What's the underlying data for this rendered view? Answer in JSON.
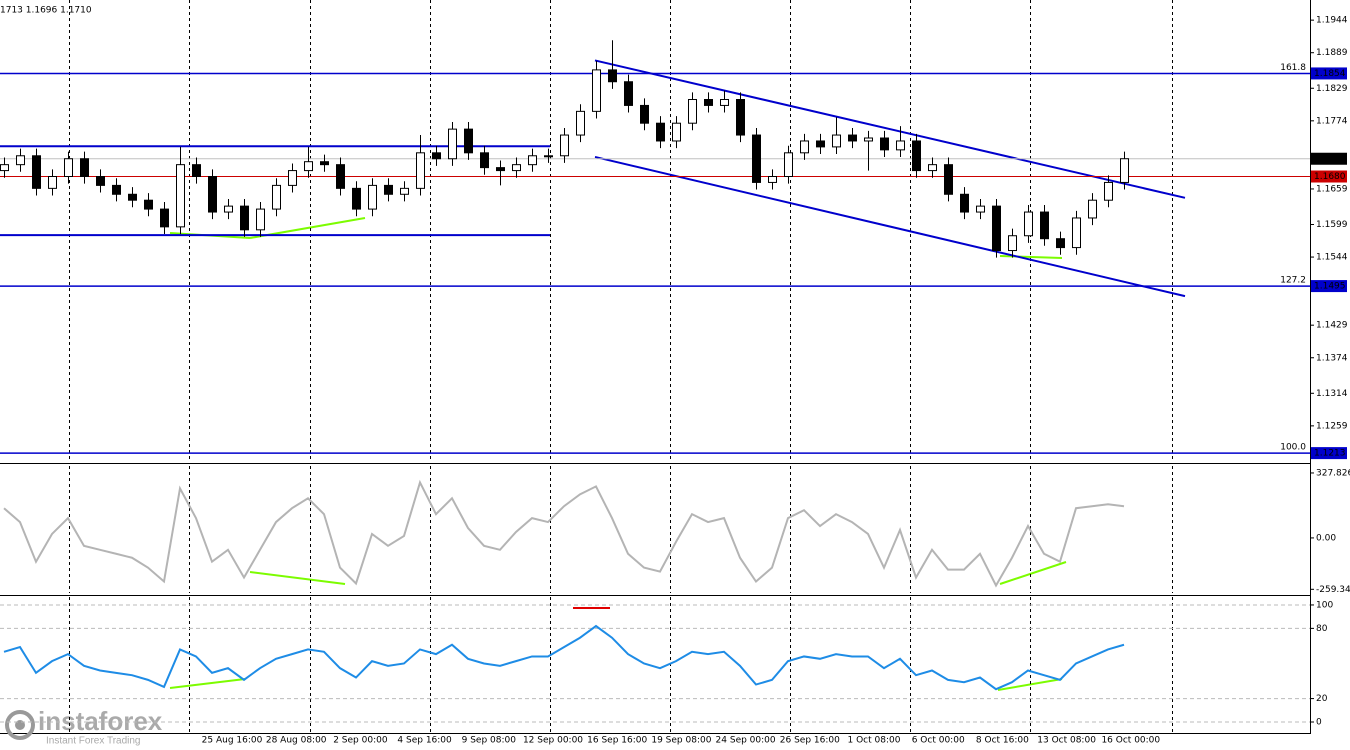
{
  "header": "1713 1.1696 1.1710",
  "watermark": {
    "brand": "instaforex",
    "tagline": "Instant Forex Trading"
  },
  "xlabels": [
    "25 Aug 16:00",
    "28 Aug 08:00",
    "2 Sep 00:00",
    "4 Sep 16:00",
    "9 Sep 08:00",
    "12 Sep 00:00",
    "16 Sep 16:00",
    "19 Sep 08:00",
    "24 Sep 00:00",
    "26 Sep 16:00",
    "1 Oct 08:00",
    "6 Oct 00:00",
    "8 Oct 16:00",
    "13 Oct 08:00",
    "16 Oct 00:00"
  ],
  "chart_data": [
    {
      "type": "candlestick",
      "up_color": "#ffffff",
      "down_color": "#000000",
      "ylim": [
        1.1198,
        1.1978
      ],
      "yticks": [
        1.1944,
        1.1889,
        1.1829,
        1.1774,
        1.1659,
        1.1599,
        1.1544,
        1.1429,
        1.1374,
        1.1314,
        1.1259
      ],
      "candles": [
        [
          1.169,
          1.1712,
          1.1678,
          1.17
        ],
        [
          1.17,
          1.1727,
          1.1688,
          1.1715
        ],
        [
          1.1715,
          1.1727,
          1.1648,
          1.166
        ],
        [
          1.166,
          1.1692,
          1.1648,
          1.168
        ],
        [
          1.168,
          1.1722,
          1.1668,
          1.171
        ],
        [
          1.171,
          1.1722,
          1.1668,
          1.168
        ],
        [
          1.168,
          1.1692,
          1.1653,
          1.1665
        ],
        [
          1.1665,
          1.1677,
          1.1638,
          1.165
        ],
        [
          1.165,
          1.1662,
          1.1628,
          1.164
        ],
        [
          1.164,
          1.1652,
          1.1613,
          1.1625
        ],
        [
          1.1625,
          1.1637,
          1.1583,
          1.1595
        ],
        [
          1.1595,
          1.173,
          1.1583,
          1.17
        ],
        [
          1.17,
          1.1712,
          1.1668,
          1.168
        ],
        [
          1.168,
          1.1692,
          1.1608,
          1.162
        ],
        [
          1.162,
          1.1642,
          1.1608,
          1.163
        ],
        [
          1.163,
          1.1642,
          1.1578,
          1.159
        ],
        [
          1.159,
          1.1637,
          1.1578,
          1.1625
        ],
        [
          1.1625,
          1.1677,
          1.1613,
          1.1665
        ],
        [
          1.1665,
          1.1702,
          1.1653,
          1.169
        ],
        [
          1.169,
          1.173,
          1.1678,
          1.1705
        ],
        [
          1.1705,
          1.1717,
          1.1688,
          1.17
        ],
        [
          1.17,
          1.1712,
          1.1648,
          1.166
        ],
        [
          1.166,
          1.1672,
          1.1613,
          1.1625
        ],
        [
          1.1625,
          1.1677,
          1.1613,
          1.1665
        ],
        [
          1.1665,
          1.1677,
          1.1638,
          1.165
        ],
        [
          1.165,
          1.1672,
          1.1638,
          1.166
        ],
        [
          1.166,
          1.175,
          1.1648,
          1.172
        ],
        [
          1.172,
          1.1732,
          1.1698,
          1.171
        ],
        [
          1.171,
          1.1772,
          1.1698,
          1.176
        ],
        [
          1.176,
          1.1772,
          1.1708,
          1.172
        ],
        [
          1.172,
          1.1732,
          1.1683,
          1.1695
        ],
        [
          1.1695,
          1.1707,
          1.1665,
          1.169
        ],
        [
          1.169,
          1.1712,
          1.1678,
          1.17
        ],
        [
          1.17,
          1.1727,
          1.1688,
          1.1715
        ],
        [
          1.1715,
          1.1727,
          1.1703,
          1.1715
        ],
        [
          1.1715,
          1.1762,
          1.1703,
          1.175
        ],
        [
          1.175,
          1.1802,
          1.1738,
          1.179
        ],
        [
          1.179,
          1.1875,
          1.1778,
          1.186
        ],
        [
          1.186,
          1.191,
          1.1828,
          1.184
        ],
        [
          1.184,
          1.1852,
          1.1788,
          1.18
        ],
        [
          1.18,
          1.1812,
          1.1758,
          1.177
        ],
        [
          1.177,
          1.1782,
          1.1728,
          1.174
        ],
        [
          1.174,
          1.1782,
          1.1728,
          1.177
        ],
        [
          1.177,
          1.1822,
          1.1758,
          1.181
        ],
        [
          1.181,
          1.1822,
          1.1788,
          1.18
        ],
        [
          1.18,
          1.1825,
          1.1788,
          1.181
        ],
        [
          1.181,
          1.1822,
          1.1738,
          1.175
        ],
        [
          1.175,
          1.1762,
          1.1658,
          1.167
        ],
        [
          1.167,
          1.1692,
          1.1658,
          1.168
        ],
        [
          1.168,
          1.1732,
          1.1668,
          1.172
        ],
        [
          1.172,
          1.1752,
          1.1708,
          1.174
        ],
        [
          1.174,
          1.1752,
          1.1718,
          1.173
        ],
        [
          1.173,
          1.178,
          1.1718,
          1.175
        ],
        [
          1.175,
          1.1762,
          1.1728,
          1.174
        ],
        [
          1.174,
          1.1757,
          1.169,
          1.1745
        ],
        [
          1.1745,
          1.1757,
          1.1713,
          1.1725
        ],
        [
          1.1725,
          1.1765,
          1.1713,
          1.174
        ],
        [
          1.174,
          1.1752,
          1.1678,
          1.169
        ],
        [
          1.169,
          1.1712,
          1.1678,
          1.17
        ],
        [
          1.17,
          1.1712,
          1.1638,
          1.165
        ],
        [
          1.165,
          1.1662,
          1.1608,
          1.162
        ],
        [
          1.162,
          1.1642,
          1.1608,
          1.163
        ],
        [
          1.163,
          1.1642,
          1.1543,
          1.1555
        ],
        [
          1.1555,
          1.1592,
          1.1543,
          1.158
        ],
        [
          1.158,
          1.1632,
          1.1568,
          1.162
        ],
        [
          1.162,
          1.1632,
          1.1563,
          1.1575
        ],
        [
          1.1575,
          1.1587,
          1.1548,
          1.156
        ],
        [
          1.156,
          1.1622,
          1.1548,
          1.161
        ],
        [
          1.161,
          1.1652,
          1.1598,
          1.164
        ],
        [
          1.164,
          1.1682,
          1.1628,
          1.167
        ],
        [
          1.167,
          1.1722,
          1.1658,
          1.171
        ]
      ],
      "trendlines": [
        {
          "from": 1.1731,
          "to": 1.1731,
          "color": "#0000cc"
        },
        {
          "from": 1.1581,
          "to": 1.1581,
          "color": "#0000cc"
        },
        {
          "from": 1.1876,
          "to": 1.1644,
          "color": "#0000cc"
        },
        {
          "from": 1.1713,
          "to": 1.1478,
          "color": "#0000cc"
        }
      ],
      "levels": [
        {
          "label": "161.8",
          "price": 1.1854,
          "color": "#0000cc"
        },
        {
          "label": "127.2",
          "price": 1.1495,
          "color": "#0000cc"
        },
        {
          "label": "100.0",
          "price": 1.1213,
          "color": "#0000cc"
        }
      ],
      "price_lines": [
        {
          "price": {
            "value": 1.171,
            "label": "1.1710"
          },
          "color": "#c0c0c0",
          "box": "#000000"
        },
        {
          "price": {
            "value": 1.168,
            "label": "1.1680"
          },
          "color": "#cc0000",
          "box": "#cc0000"
        }
      ]
    },
    {
      "type": "line",
      "color": "#b4b4b4",
      "ylim": [
        -278,
        363
      ],
      "yticks": [
        327.826,
        {
          "value": 0,
          "label": "0.00"
        },
        -259.342
      ],
      "values": [
        150,
        80,
        -120,
        20,
        100,
        -40,
        -60,
        -80,
        -100,
        -150,
        -220,
        250,
        100,
        -120,
        -60,
        -200,
        -60,
        80,
        150,
        200,
        120,
        -150,
        -230,
        20,
        -40,
        10,
        280,
        120,
        200,
        50,
        -40,
        -60,
        30,
        100,
        80,
        160,
        220,
        260,
        100,
        -80,
        -150,
        -170,
        -20,
        120,
        80,
        100,
        -100,
        -220,
        -150,
        100,
        140,
        60,
        120,
        80,
        20,
        -150,
        40,
        -200,
        -60,
        -160,
        -160,
        -80,
        -240,
        -100,
        60,
        -80,
        -120,
        150,
        160,
        170,
        160
      ]
    },
    {
      "type": "line",
      "color": "#1e8ce6",
      "ylim": [
        -9.4,
        106.8
      ],
      "yticks": [
        100,
        80,
        20,
        0
      ],
      "values": [
        60,
        64,
        42,
        52,
        58,
        48,
        44,
        42,
        40,
        36,
        30,
        62,
        56,
        42,
        46,
        36,
        46,
        54,
        58,
        62,
        60,
        46,
        38,
        52,
        48,
        50,
        62,
        58,
        66,
        54,
        50,
        48,
        52,
        56,
        56,
        64,
        72,
        82,
        72,
        58,
        50,
        46,
        52,
        60,
        58,
        60,
        48,
        32,
        36,
        52,
        56,
        54,
        58,
        56,
        56,
        46,
        54,
        40,
        44,
        36,
        34,
        38,
        28,
        34,
        44,
        40,
        36,
        50,
        56,
        62,
        66
      ]
    }
  ]
}
